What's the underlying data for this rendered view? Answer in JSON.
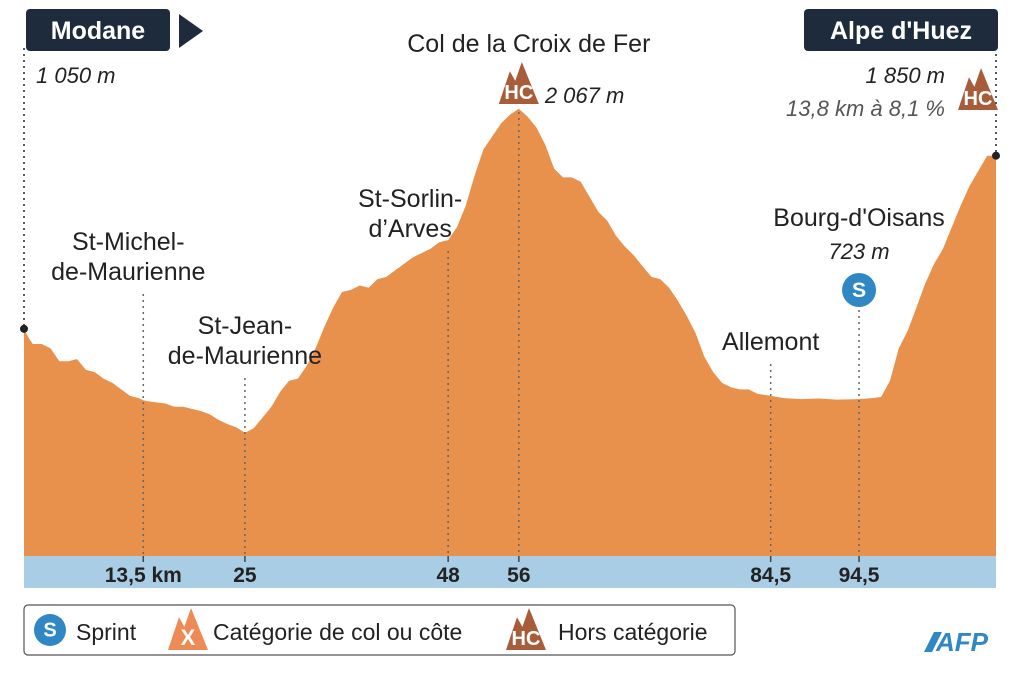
{
  "chart_data": {
    "type": "area",
    "xlabel": "",
    "ylabel": "",
    "x_unit": "km",
    "xlim": [
      0,
      110
    ],
    "ylim": [
      0,
      2200
    ],
    "colors": {
      "profile": "#e8914c",
      "axis_band": "#a9cde4",
      "label_box": "#1d2b3c",
      "hc_badge": "#a85d3a",
      "cat_badge": "#ee8a55",
      "sprint": "#2f87c4"
    },
    "profile": {
      "x": [
        0,
        0.5,
        1,
        2,
        3,
        4,
        5,
        6,
        7,
        8,
        9,
        10,
        11,
        12,
        13,
        13.5,
        14,
        15,
        16,
        17,
        18,
        19,
        20,
        21,
        22,
        23,
        24,
        25,
        26,
        27,
        28,
        29,
        30,
        31,
        32,
        33,
        34,
        35,
        36,
        37,
        38,
        39,
        40,
        41,
        42,
        43,
        44,
        45,
        46,
        47,
        48,
        49,
        50,
        51,
        52,
        53,
        54,
        55,
        56,
        57,
        58,
        59,
        60,
        61,
        62,
        63,
        64,
        65,
        66,
        67,
        68,
        69,
        70,
        71,
        72,
        73,
        74,
        75,
        76,
        77,
        78,
        79,
        80,
        81,
        82,
        83,
        84.5,
        86,
        88,
        90,
        92,
        94.5,
        96,
        97,
        98,
        99,
        100,
        101,
        102,
        103,
        104,
        105,
        106,
        107,
        108,
        109,
        110
      ],
      "y": [
        1050,
        1010,
        980,
        980,
        960,
        900,
        900,
        910,
        860,
        850,
        820,
        800,
        770,
        740,
        730,
        720,
        715,
        710,
        705,
        690,
        690,
        680,
        670,
        655,
        630,
        610,
        595,
        570,
        590,
        640,
        690,
        760,
        810,
        820,
        880,
        960,
        1060,
        1150,
        1220,
        1230,
        1250,
        1240,
        1280,
        1290,
        1320,
        1350,
        1380,
        1400,
        1420,
        1450,
        1460,
        1520,
        1620,
        1760,
        1880,
        1940,
        2000,
        2040,
        2067,
        2030,
        1980,
        1900,
        1790,
        1750,
        1750,
        1730,
        1660,
        1590,
        1550,
        1480,
        1430,
        1390,
        1340,
        1290,
        1280,
        1240,
        1180,
        1110,
        1030,
        920,
        850,
        800,
        780,
        770,
        770,
        750,
        740,
        730,
        725,
        728,
        723,
        725,
        730,
        735,
        810,
        960,
        1040,
        1150,
        1260,
        1350,
        1420,
        1520,
        1620,
        1710,
        1780,
        1850,
        1850
      ]
    },
    "distance_ticks": [
      {
        "x": 13.5,
        "label": "13,5 km"
      },
      {
        "x": 25,
        "label": "25"
      },
      {
        "x": 48,
        "label": "48"
      },
      {
        "x": 56,
        "label": "56"
      },
      {
        "x": 84.5,
        "label": "84,5"
      },
      {
        "x": 94.5,
        "label": "94,5"
      }
    ],
    "locations": [
      {
        "name": "Modane",
        "x": 0,
        "altitude": 1050,
        "altitude_label": "1 050 m",
        "kind": "start"
      },
      {
        "name": "St-Michel-de-Maurienne",
        "lines": [
          "St-Michel-",
          "de-Maurienne"
        ],
        "x": 13.5
      },
      {
        "name": "St-Jean-de-Maurienne",
        "lines": [
          "St-Jean-",
          "de-Maurienne"
        ],
        "x": 25
      },
      {
        "name": "St-Sorlin-d’Arves",
        "lines": [
          "St-Sorlin-",
          "d’Arves"
        ],
        "x": 48
      },
      {
        "name": "Col de la Croix de Fer",
        "x": 56,
        "altitude": 2067,
        "altitude_label": "2 067 m",
        "category": "HC"
      },
      {
        "name": "Allemont",
        "x": 84.5
      },
      {
        "name": "Bourg-d'Oisans",
        "x": 94.5,
        "altitude": 723,
        "altitude_label": "723 m",
        "sprint": "S"
      },
      {
        "name": "Alpe d'Huez",
        "x": 110,
        "altitude": 1850,
        "altitude_label": "1 850 m",
        "climb_label": "13,8 km à 8,1 %",
        "category": "HC",
        "kind": "finish"
      }
    ],
    "legend": [
      {
        "badge": "S",
        "shape": "sprint",
        "label": "Sprint"
      },
      {
        "badge": "X",
        "shape": "cat",
        "label": "Catégorie de col ou côte"
      },
      {
        "badge": "HC",
        "shape": "hc",
        "label": "Hors catégorie"
      }
    ],
    "credit": "AFP"
  }
}
